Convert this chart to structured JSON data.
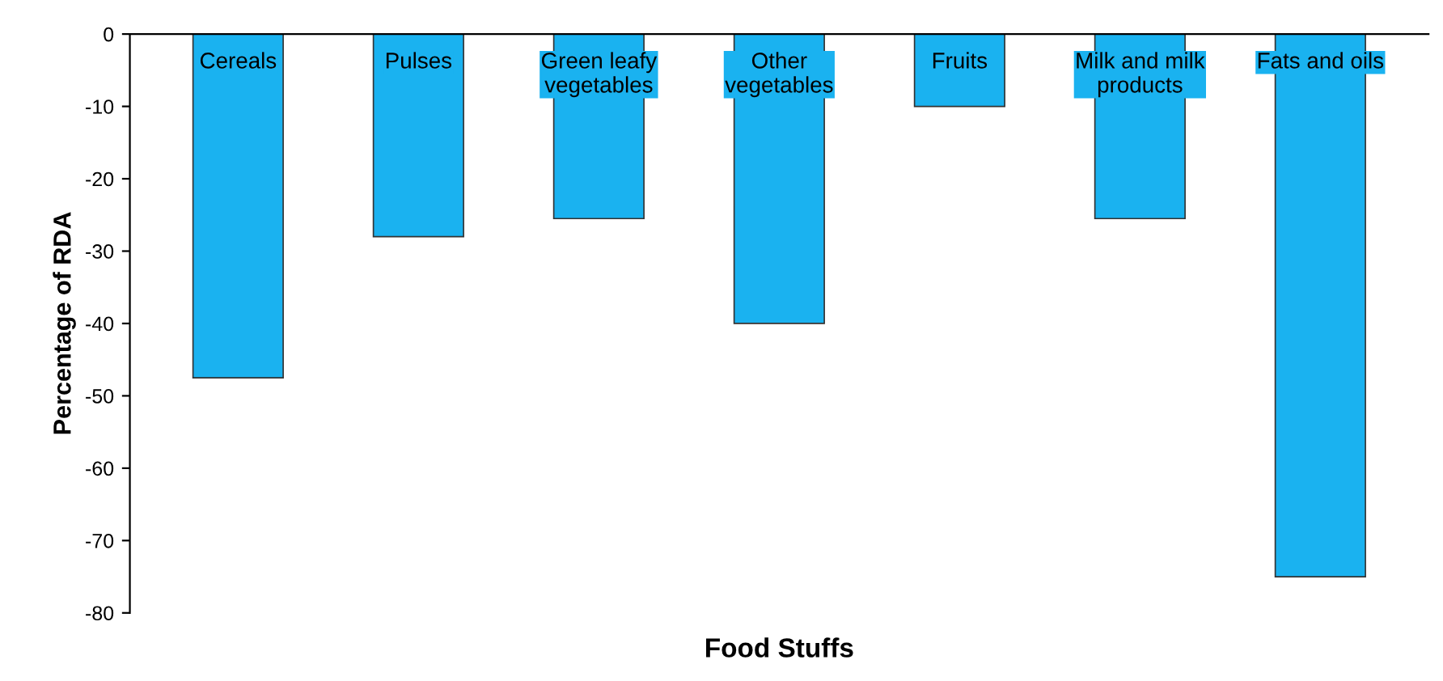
{
  "chart_data": {
    "type": "bar",
    "xlabel": "Food Stuffs",
    "ylabel": "Percentage of RDA",
    "categories": [
      "Cereals",
      "Pulses",
      "Green leafy\nvegetables",
      "Other\nvegetables",
      "Fruits",
      "Milk and milk\nproducts",
      "Fats and oils"
    ],
    "values": [
      -47.5,
      -28,
      -25.5,
      -40,
      -10,
      -25.5,
      -75
    ],
    "color": "#1ab2f0",
    "ylim": [
      -80,
      0
    ],
    "yticks": [
      0,
      -10,
      -20,
      -30,
      -40,
      -50,
      -60,
      -70,
      -80
    ],
    "grid": false,
    "legend": false
  }
}
